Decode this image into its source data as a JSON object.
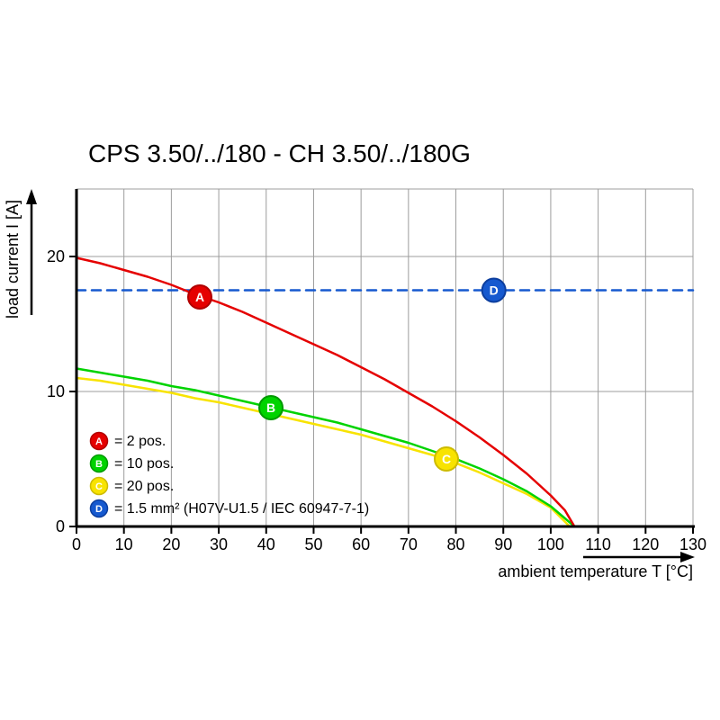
{
  "title": "CPS 3.50/../180 - CH 3.50/../180G",
  "chart_data": {
    "type": "line",
    "title": "CPS 3.50/../180 - CH 3.50/../180G",
    "xlabel": "ambient temperature T [°C]",
    "ylabel": "load current I [A]",
    "xlim": [
      0,
      130
    ],
    "ylim": [
      0,
      25
    ],
    "x_ticks": [
      0,
      10,
      20,
      30,
      40,
      50,
      60,
      70,
      80,
      90,
      100,
      110,
      120,
      130
    ],
    "y_ticks": [
      0,
      10,
      20
    ],
    "grid": true,
    "legend_position": "lower-left",
    "colors": {
      "grid": "#9c9c9c",
      "axis": "#000000"
    },
    "series": [
      {
        "key": "A",
        "legend_label": "= 2 pos.",
        "name": "A = 2 pos.",
        "color": "#e50000",
        "edge": "#b00000",
        "dashed": false,
        "marker": {
          "x": 26,
          "y": 17.0
        },
        "points": [
          [
            0,
            19.9
          ],
          [
            5,
            19.5
          ],
          [
            10,
            19.0
          ],
          [
            15,
            18.5
          ],
          [
            20,
            17.9
          ],
          [
            25,
            17.2
          ],
          [
            30,
            16.6
          ],
          [
            35,
            15.9
          ],
          [
            40,
            15.1
          ],
          [
            45,
            14.3
          ],
          [
            50,
            13.5
          ],
          [
            55,
            12.7
          ],
          [
            60,
            11.8
          ],
          [
            65,
            10.9
          ],
          [
            70,
            9.9
          ],
          [
            75,
            8.9
          ],
          [
            80,
            7.8
          ],
          [
            85,
            6.6
          ],
          [
            90,
            5.3
          ],
          [
            95,
            3.9
          ],
          [
            100,
            2.3
          ],
          [
            103,
            1.2
          ],
          [
            105,
            0
          ]
        ]
      },
      {
        "key": "B",
        "legend_label": "= 10 pos.",
        "name": "B = 10 pos.",
        "color": "#00d300",
        "edge": "#009a00",
        "dashed": false,
        "marker": {
          "x": 41,
          "y": 8.8
        },
        "points": [
          [
            0,
            11.7
          ],
          [
            5,
            11.4
          ],
          [
            10,
            11.1
          ],
          [
            15,
            10.8
          ],
          [
            20,
            10.4
          ],
          [
            25,
            10.1
          ],
          [
            30,
            9.7
          ],
          [
            35,
            9.3
          ],
          [
            40,
            8.9
          ],
          [
            45,
            8.5
          ],
          [
            50,
            8.1
          ],
          [
            55,
            7.7
          ],
          [
            60,
            7.2
          ],
          [
            65,
            6.7
          ],
          [
            70,
            6.2
          ],
          [
            75,
            5.6
          ],
          [
            80,
            5.0
          ],
          [
            85,
            4.3
          ],
          [
            90,
            3.5
          ],
          [
            95,
            2.6
          ],
          [
            100,
            1.5
          ],
          [
            105,
            0
          ]
        ]
      },
      {
        "key": "C",
        "legend_label": "= 20 pos.",
        "name": "C = 20 pos.",
        "color": "#f8e300",
        "edge": "#cdbb00",
        "dashed": false,
        "marker": {
          "x": 78,
          "y": 5.0
        },
        "points": [
          [
            0,
            11.0
          ],
          [
            5,
            10.8
          ],
          [
            10,
            10.5
          ],
          [
            15,
            10.2
          ],
          [
            20,
            9.9
          ],
          [
            25,
            9.5
          ],
          [
            30,
            9.2
          ],
          [
            35,
            8.8
          ],
          [
            40,
            8.4
          ],
          [
            45,
            8.0
          ],
          [
            50,
            7.6
          ],
          [
            55,
            7.2
          ],
          [
            60,
            6.8
          ],
          [
            65,
            6.3
          ],
          [
            70,
            5.8
          ],
          [
            75,
            5.3
          ],
          [
            80,
            4.7
          ],
          [
            85,
            4.0
          ],
          [
            90,
            3.2
          ],
          [
            95,
            2.4
          ],
          [
            100,
            1.4
          ],
          [
            104,
            0
          ]
        ]
      },
      {
        "key": "D",
        "legend_label": "= 1.5 mm² (H07V-U1.5 / IEC 60947-7-1)",
        "name": "D = 1.5 mm² (H07V-U1.5 / IEC 60947-7-1)",
        "color": "#1659cf",
        "edge": "#0c3e9e",
        "dashed": true,
        "marker": {
          "x": 88,
          "y": 17.5
        },
        "points": [
          [
            0,
            17.5
          ],
          [
            130,
            17.5
          ]
        ]
      }
    ]
  }
}
